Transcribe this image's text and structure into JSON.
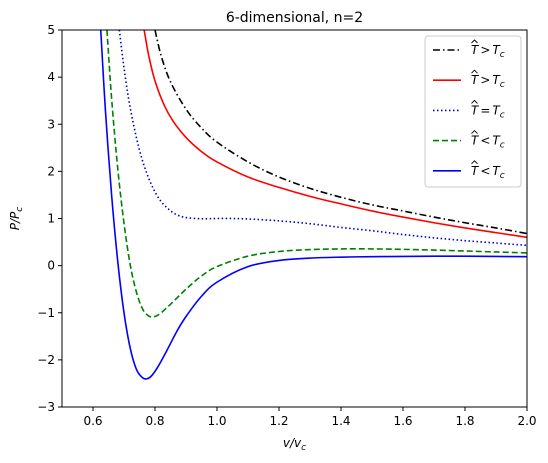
{
  "chart_data": {
    "type": "line",
    "title": "6-dimensional, n=2",
    "xlabel": {
      "main": "v/v",
      "sub": "c"
    },
    "ylabel": {
      "main": "P/P",
      "sub": "c"
    },
    "xlim": [
      0.5,
      2.0
    ],
    "ylim": [
      -3,
      5
    ],
    "xticks": [
      0.6,
      0.8,
      1.0,
      1.2,
      1.4,
      1.6,
      1.8,
      2.0
    ],
    "xtick_labels": [
      "0.6",
      "0.8",
      "1.0",
      "1.2",
      "1.4",
      "1.6",
      "1.8",
      "2.0"
    ],
    "yticks": [
      -3,
      -2,
      -1,
      0,
      1,
      2,
      3,
      4,
      5
    ],
    "ytick_labels": [
      "−3",
      "−2",
      "−1",
      "0",
      "1",
      "2",
      "3",
      "4",
      "5"
    ],
    "grid": false,
    "legend_position": "top-right",
    "series": [
      {
        "name": {
          "hat": "T",
          "rel": ">",
          "var": "T",
          "sub": "c"
        },
        "color": "#000000",
        "style": "dash-dot",
        "x": [
          0.8,
          0.82,
          0.85,
          0.9,
          0.95,
          1.0,
          1.1,
          1.2,
          1.3,
          1.4,
          1.5,
          1.6,
          1.7,
          1.8,
          1.9,
          2.0
        ],
        "y": [
          5.0,
          4.45,
          3.9,
          3.32,
          2.92,
          2.62,
          2.2,
          1.88,
          1.64,
          1.45,
          1.29,
          1.16,
          1.03,
          0.91,
          0.8,
          0.68
        ]
      },
      {
        "name": {
          "hat": "T",
          "rel": ">",
          "var": "T",
          "sub": "c"
        },
        "color": "#ff0000",
        "style": "solid",
        "x": [
          0.765,
          0.78,
          0.8,
          0.83,
          0.86,
          0.9,
          0.95,
          1.0,
          1.1,
          1.2,
          1.3,
          1.4,
          1.5,
          1.6,
          1.7,
          1.8,
          1.9,
          2.0
        ],
        "y": [
          5.0,
          4.45,
          3.92,
          3.4,
          3.05,
          2.72,
          2.42,
          2.2,
          1.88,
          1.66,
          1.47,
          1.31,
          1.16,
          1.03,
          0.91,
          0.8,
          0.7,
          0.6
        ]
      },
      {
        "name": {
          "hat": "T",
          "rel": "=",
          "var": "T",
          "sub": "c"
        },
        "color": "#0000cc",
        "style": "dotted",
        "x": [
          0.685,
          0.7,
          0.72,
          0.75,
          0.78,
          0.81,
          0.84,
          0.87,
          0.9,
          0.95,
          1.0,
          1.05,
          1.1,
          1.2,
          1.3,
          1.4,
          1.5,
          1.6,
          1.7,
          1.8,
          1.9,
          2.0
        ],
        "y": [
          5.0,
          4.2,
          3.35,
          2.45,
          1.85,
          1.45,
          1.22,
          1.08,
          1.02,
          0.995,
          1.0,
          1.0,
          0.99,
          0.95,
          0.89,
          0.81,
          0.74,
          0.66,
          0.59,
          0.53,
          0.48,
          0.43
        ]
      },
      {
        "name": {
          "hat": "T",
          "rel": "<",
          "var": "T",
          "sub": "c"
        },
        "color": "#008000",
        "style": "dashed",
        "x": [
          0.645,
          0.66,
          0.68,
          0.7,
          0.72,
          0.74,
          0.76,
          0.78,
          0.8,
          0.82,
          0.85,
          0.9,
          0.95,
          1.0,
          1.1,
          1.2,
          1.3,
          1.4,
          1.5,
          1.6,
          1.7,
          1.8,
          1.9,
          2.0
        ],
        "y": [
          5.0,
          3.55,
          2.05,
          0.9,
          0.02,
          -0.56,
          -0.92,
          -1.07,
          -1.08,
          -1.0,
          -0.82,
          -0.5,
          -0.22,
          -0.02,
          0.2,
          0.3,
          0.34,
          0.355,
          0.355,
          0.345,
          0.33,
          0.31,
          0.29,
          0.27
        ]
      },
      {
        "name": {
          "hat": "T",
          "rel": "<",
          "var": "T",
          "sub": "c"
        },
        "color": "#0000ff",
        "style": "solid",
        "x": [
          0.625,
          0.64,
          0.66,
          0.68,
          0.7,
          0.72,
          0.74,
          0.76,
          0.775,
          0.79,
          0.81,
          0.84,
          0.87,
          0.9,
          0.95,
          1.0,
          1.1,
          1.2,
          1.3,
          1.4,
          1.5,
          1.6,
          1.7,
          1.8,
          1.9,
          2.0
        ],
        "y": [
          5.0,
          3.3,
          1.5,
          0.08,
          -1.0,
          -1.75,
          -2.2,
          -2.38,
          -2.4,
          -2.33,
          -2.14,
          -1.78,
          -1.4,
          -1.08,
          -0.65,
          -0.35,
          -0.02,
          0.11,
          0.16,
          0.18,
          0.19,
          0.195,
          0.2,
          0.2,
          0.195,
          0.19
        ]
      }
    ]
  }
}
